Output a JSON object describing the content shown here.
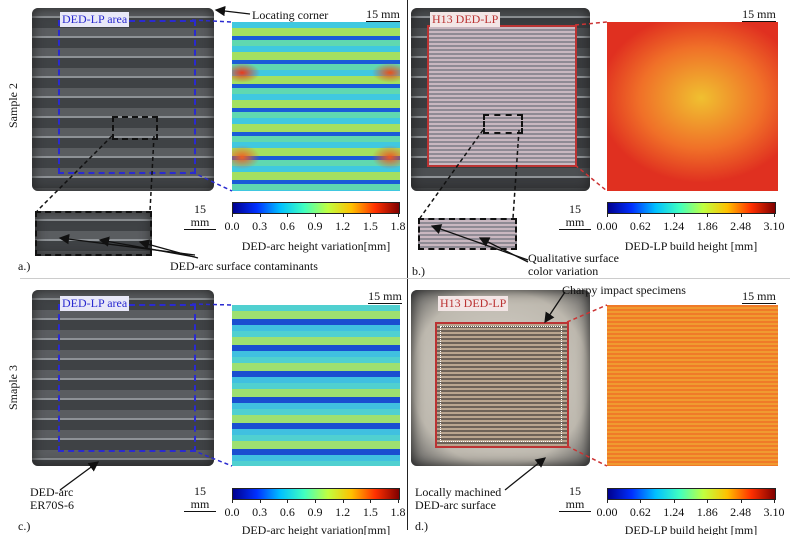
{
  "rows": {
    "sample2": "Sample 2",
    "sample3": "Smaple 3"
  },
  "panels": {
    "a": {
      "caption": "a.)",
      "tag": "DED-LP area",
      "callout_corner": "Locating corner",
      "callout_contaminants": "DED-arc surface contaminants",
      "scale_photo": "15 mm",
      "scale_map": "15 mm",
      "colorbar_ticks": [
        "0.0",
        "0.3",
        "0.6",
        "0.9",
        "1.2",
        "1.5",
        "1.8"
      ],
      "colorbar_label": "DED-arc height variation[mm]"
    },
    "b": {
      "caption": "b.)",
      "tag": "H13 DED-LP",
      "callout_color": "Qualitative surface color variation",
      "callout_color_l1": "Qualitative surface",
      "callout_color_l2": "color variation",
      "scale_photo": "15 mm",
      "scale_map": "15 mm",
      "colorbar_ticks": [
        "0.00",
        "0.62",
        "1.24",
        "1.86",
        "2.48",
        "3.10"
      ],
      "colorbar_label": "DED-LP build height [mm]"
    },
    "c": {
      "caption": "c.)",
      "tag": "DED-LP area",
      "callout_l1": "DED-arc",
      "callout_l2": "ER70S-6",
      "scale_photo": "15 mm",
      "scale_map": "15 mm",
      "colorbar_ticks": [
        "0.0",
        "0.3",
        "0.6",
        "0.9",
        "1.2",
        "1.5",
        "1.8"
      ],
      "colorbar_label": "DED-arc height variation[mm]"
    },
    "d": {
      "caption": "d.)",
      "tag": "H13 DED-LP",
      "callout_charpy": "Charpy impact specimens",
      "callout_l1": "Locally machined",
      "callout_l2": "DED-arc surface",
      "scale_photo": "15 mm",
      "scale_map": "15 mm",
      "colorbar_ticks": [
        "0.00",
        "0.62",
        "1.24",
        "1.86",
        "2.48",
        "3.10"
      ],
      "colorbar_label": "DED-LP build height [mm]"
    }
  },
  "colors": {
    "ded_lp_box": "#2a2ad0",
    "h13_box": "#b33333"
  }
}
